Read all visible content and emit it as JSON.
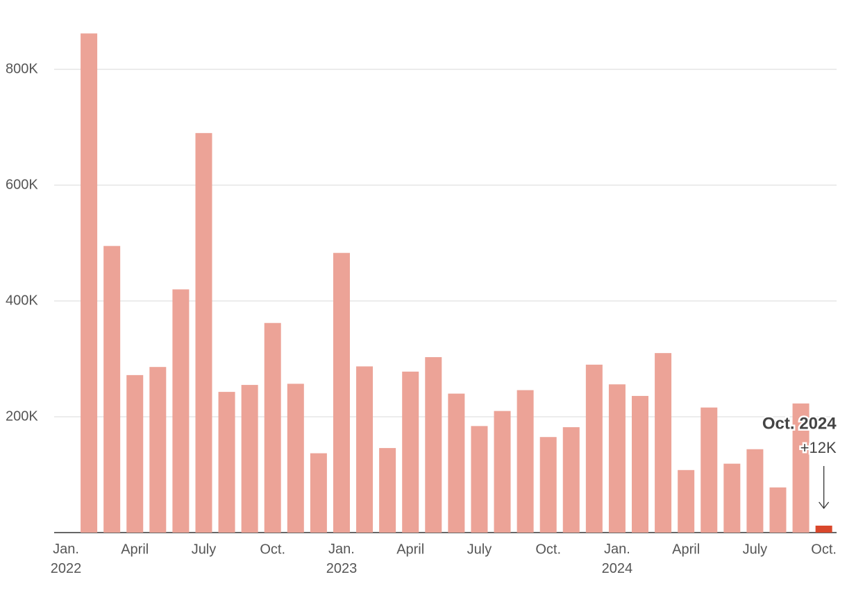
{
  "chart_data": {
    "type": "bar",
    "categories": [
      "Jan. 2022",
      null,
      null,
      "April",
      null,
      null,
      "July",
      null,
      null,
      "Oct.",
      null,
      null,
      "Jan. 2023",
      null,
      null,
      "April",
      null,
      null,
      "July",
      null,
      null,
      "Oct.",
      null,
      null,
      "Jan. 2024",
      null,
      null,
      "April",
      null,
      null,
      "July",
      null,
      null,
      "Oct."
    ],
    "values": [
      null,
      862000,
      495000,
      272000,
      286000,
      420000,
      690000,
      243000,
      255000,
      362000,
      257000,
      137000,
      483000,
      287000,
      146000,
      278000,
      303000,
      240000,
      184000,
      210000,
      246000,
      165000,
      182000,
      290000,
      256000,
      236000,
      310000,
      108000,
      216000,
      119000,
      144000,
      78000,
      223000,
      12000
    ],
    "value_labels": [
      null,
      null,
      null,
      null,
      null,
      null,
      null,
      null,
      null,
      null,
      null,
      null,
      null,
      null,
      null,
      null,
      null,
      null,
      null,
      null,
      null,
      null,
      null,
      null,
      null,
      null,
      null,
      null,
      null,
      null,
      null,
      null,
      null,
      "+12K"
    ],
    "color": "#eca397",
    "highlight_color": "#d9472b",
    "annotation": "Oct. 2024",
    "ylim": [
      0,
      900000
    ],
    "yticks": [
      {
        "value": 200000,
        "label": "200K"
      },
      {
        "value": 400000,
        "label": "400K"
      },
      {
        "value": 600000,
        "label": "600K"
      },
      {
        "value": 800000,
        "label": "800K"
      }
    ],
    "grid": true
  }
}
